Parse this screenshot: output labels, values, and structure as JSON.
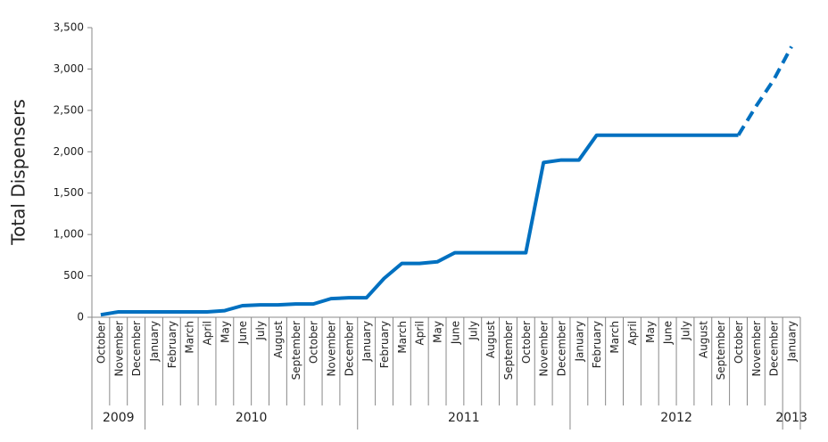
{
  "chart_data": {
    "type": "line",
    "y_label": "Total Dispensers",
    "categories": [
      "October",
      "November",
      "December",
      "January",
      "February",
      "March",
      "April",
      "May",
      "June",
      "July",
      "August",
      "September",
      "October",
      "November",
      "December",
      "January",
      "February",
      "March",
      "April",
      "May",
      "June",
      "July",
      "August",
      "September",
      "October",
      "November",
      "December",
      "January",
      "February",
      "March",
      "April",
      "May",
      "June",
      "July",
      "August",
      "September",
      "October",
      "November",
      "December",
      "January"
    ],
    "category_years": [
      "2009",
      "2009",
      "2009",
      "2010",
      "2010",
      "2010",
      "2010",
      "2010",
      "2010",
      "2010",
      "2010",
      "2010",
      "2010",
      "2010",
      "2010",
      "2011",
      "2011",
      "2011",
      "2011",
      "2011",
      "2011",
      "2011",
      "2011",
      "2011",
      "2011",
      "2011",
      "2011",
      "2012",
      "2012",
      "2012",
      "2012",
      "2012",
      "2012",
      "2012",
      "2012",
      "2012",
      "2012",
      "2012",
      "2012",
      "2013"
    ],
    "series": [
      {
        "color": "#0070c0",
        "style": "solid",
        "values": [
          30,
          65,
          65,
          65,
          65,
          65,
          65,
          80,
          140,
          150,
          150,
          160,
          160,
          225,
          235,
          235,
          470,
          650,
          650,
          670,
          780,
          780,
          780,
          780,
          780,
          1870,
          1900,
          1900,
          2200,
          2200,
          2200,
          2200,
          2200,
          2200,
          2200,
          2200,
          2200,
          null,
          null,
          null
        ]
      },
      {
        "color": "#0070c0",
        "style": "dashed",
        "values": [
          null,
          null,
          null,
          null,
          null,
          null,
          null,
          null,
          null,
          null,
          null,
          null,
          null,
          null,
          null,
          null,
          null,
          null,
          null,
          null,
          null,
          null,
          null,
          null,
          null,
          null,
          null,
          null,
          null,
          null,
          null,
          null,
          null,
          null,
          null,
          null,
          2200,
          2550,
          2870,
          3270
        ]
      }
    ],
    "ylim": [
      0,
      3500
    ],
    "yticks": [
      0,
      500,
      {
        "value": 1000,
        "label": "1,000"
      },
      {
        "value": 1500,
        "label": "1,500"
      },
      {
        "value": 2000,
        "label": "2,000"
      },
      {
        "value": 2500,
        "label": "2,500"
      },
      {
        "value": 3000,
        "label": "3,000"
      },
      {
        "value": 3500,
        "label": "3,500"
      }
    ],
    "grid": false
  }
}
